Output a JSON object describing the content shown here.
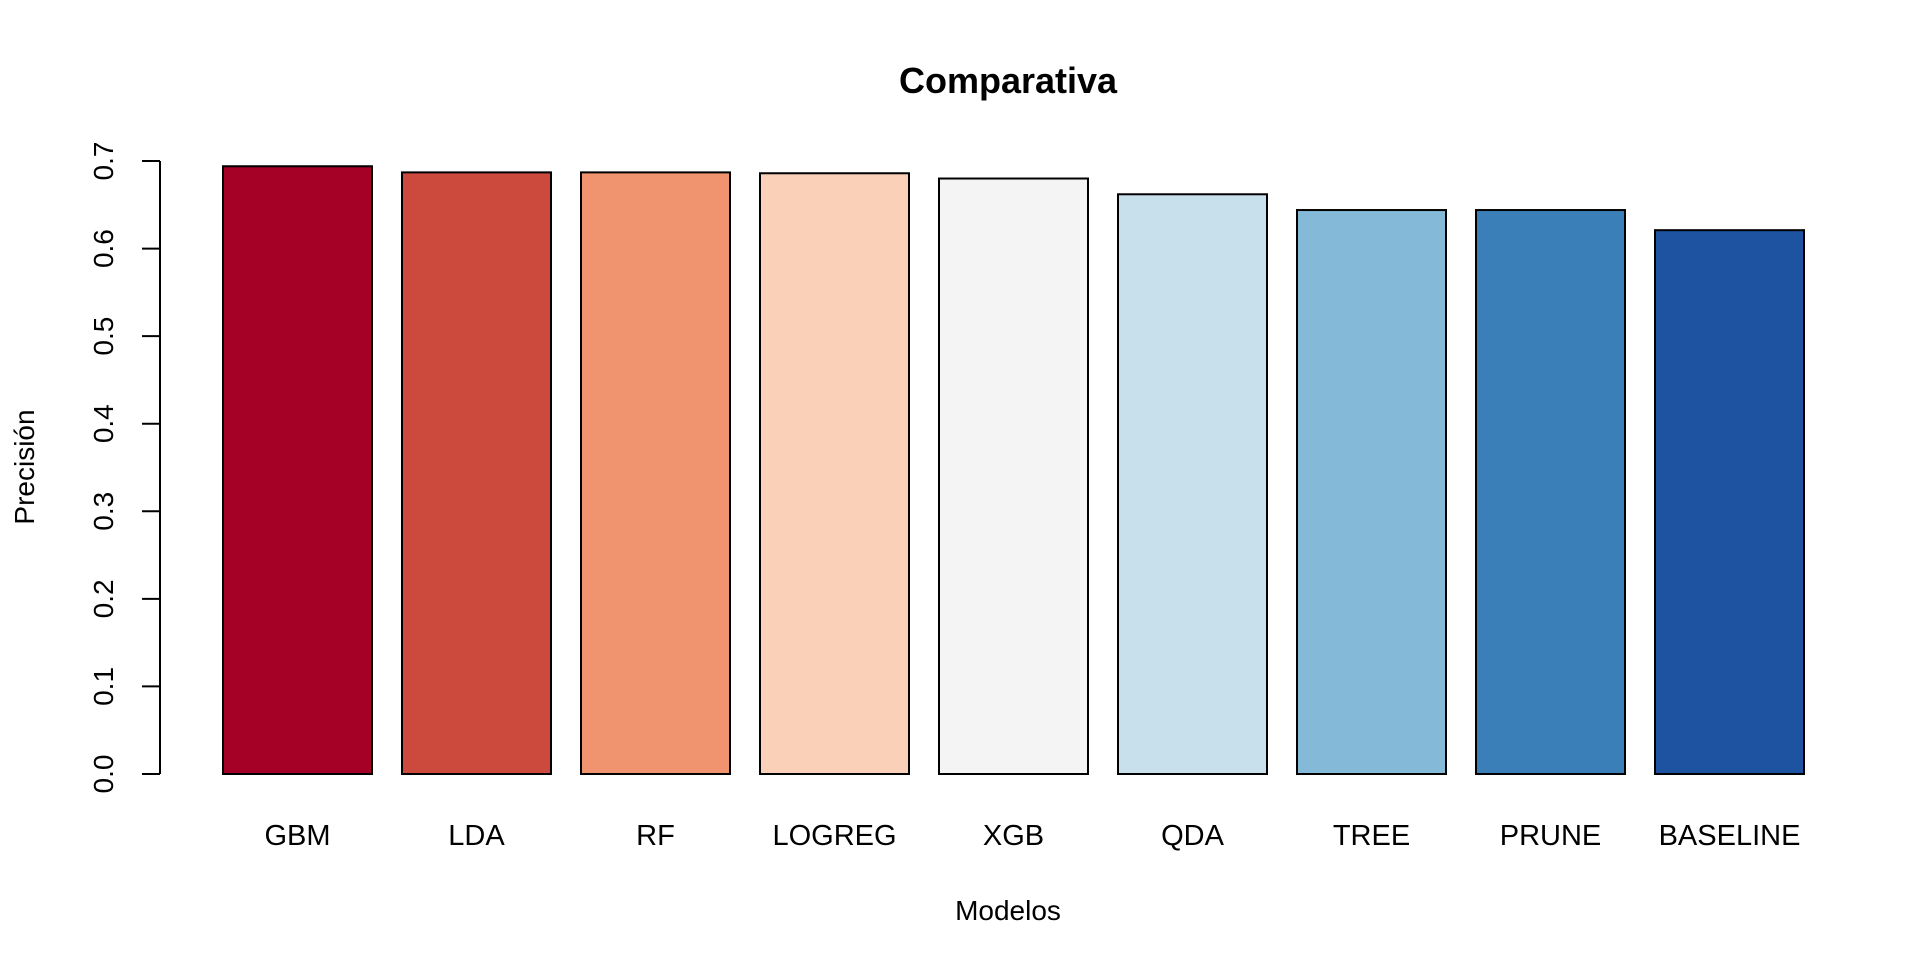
{
  "chart_data": {
    "type": "bar",
    "title": "Comparativa",
    "xlabel": "Modelos",
    "ylabel": "Precisión",
    "ylim": [
      0,
      0.7
    ],
    "yticks": [
      "0.0",
      "0.1",
      "0.2",
      "0.3",
      "0.4",
      "0.5",
      "0.6",
      "0.7"
    ],
    "grid": false,
    "legend": "none",
    "categories": [
      "GBM",
      "LDA",
      "RF",
      "LOGREG",
      "XGB",
      "QDA",
      "TREE",
      "PRUNE",
      "BASELINE"
    ],
    "values": [
      0.694,
      0.687,
      0.687,
      0.686,
      0.68,
      0.662,
      0.644,
      0.644,
      0.621
    ],
    "colors": [
      "#A50026",
      "#CB4A3D",
      "#F09470",
      "#FBD0B9",
      "#F4F4F4",
      "#C8DFEC",
      "#84B9D8",
      "#3A7FB7",
      "#1D53A0"
    ]
  }
}
